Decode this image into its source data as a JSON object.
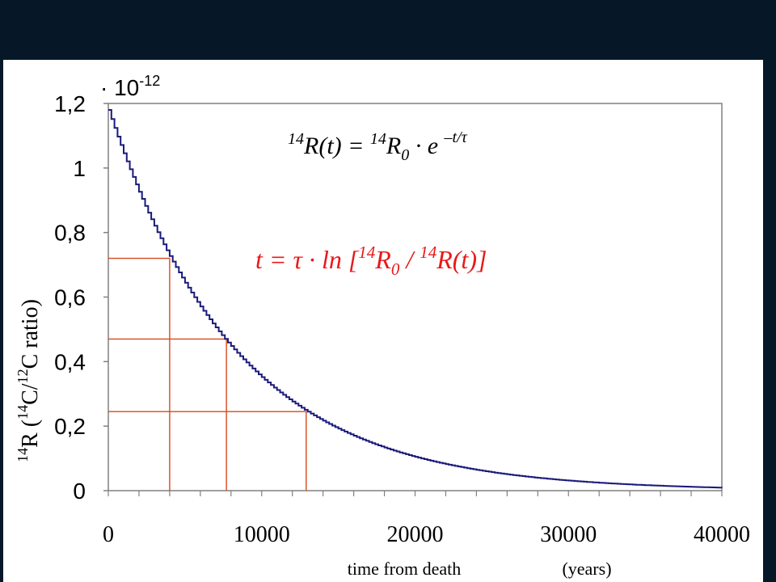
{
  "chart_data": {
    "type": "line",
    "y_multiplier_label": "· 10",
    "y_multiplier_exponent": "-12",
    "xlabel": "time from death",
    "xlabel_units": "(years)",
    "ylabel_parts": [
      "14",
      "R (",
      "14",
      "C/",
      "12",
      "C ratio)"
    ],
    "xlim": [
      0,
      40000
    ],
    "ylim": [
      0,
      1.2
    ],
    "x_ticks": [
      "0",
      "10000",
      "20000",
      "30000",
      "40000"
    ],
    "x_tick_values": [
      0,
      10000,
      20000,
      30000,
      40000
    ],
    "x_minor_step": 2000,
    "y_ticks": [
      "0",
      "0,2",
      "0,4",
      "0,6",
      "0,8",
      "1",
      "1,2"
    ],
    "y_tick_values": [
      0,
      0.2,
      0.4,
      0.6,
      0.8,
      1.0,
      1.2
    ],
    "series": [
      {
        "color": "#1a1a7a",
        "R0": 1.18,
        "tau": 8267,
        "x_start": 0,
        "x_end": 40000
      }
    ],
    "reference_lines": [
      {
        "x": 4000,
        "y": 0.72
      },
      {
        "x": 7700,
        "y": 0.47
      },
      {
        "x": 12900,
        "y": 0.245
      }
    ],
    "reference_color": "#d84a1a",
    "formula_1": {
      "a_sup": "14",
      "a": "R(t) = ",
      "b_sup": "14",
      "b": "R",
      "b_sub": "0",
      "c": " · e ",
      "c_sup": "–t/τ"
    },
    "formula_2": {
      "a": "t = τ · ln [",
      "b_sup": "14",
      "b": "R",
      "b_sub": "0",
      "c": " / ",
      "d_sup": "14",
      "d": "R(t)]"
    },
    "grid": false,
    "legend": "none"
  }
}
